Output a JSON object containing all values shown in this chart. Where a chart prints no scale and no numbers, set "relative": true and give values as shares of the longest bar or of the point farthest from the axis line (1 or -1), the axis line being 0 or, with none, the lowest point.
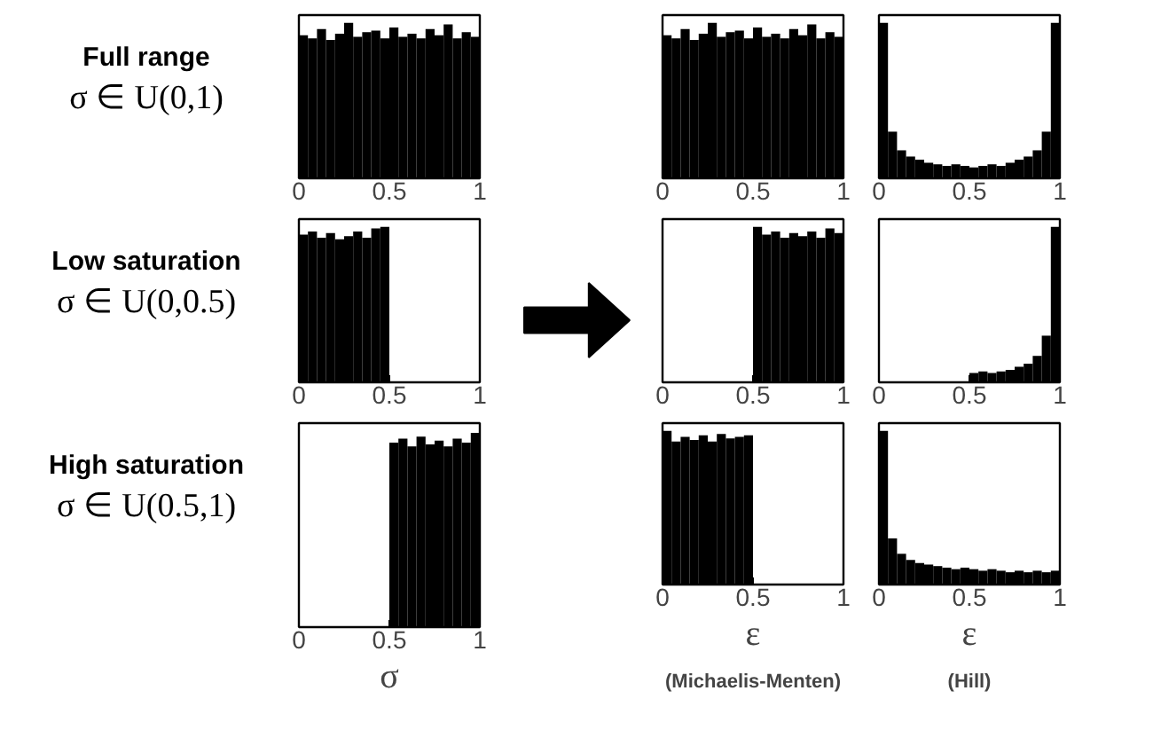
{
  "chart_data": [
    {
      "type": "bar",
      "relative": true,
      "color": "#000000",
      "xlim": [
        0,
        1
      ],
      "xticks": [
        0,
        0.5,
        1
      ],
      "grid": false,
      "annotations": [
        "Full range",
        "σ ∈ U(0,1)"
      ],
      "x": [
        0.025,
        0.075,
        0.125,
        0.175,
        0.225,
        0.275,
        0.325,
        0.375,
        0.425,
        0.475,
        0.525,
        0.575,
        0.625,
        0.675,
        0.725,
        0.775,
        0.825,
        0.875,
        0.925,
        0.975
      ],
      "values": [
        0.92,
        0.9,
        0.96,
        0.89,
        0.93,
        1.0,
        0.91,
        0.94,
        0.95,
        0.9,
        0.97,
        0.91,
        0.93,
        0.9,
        0.96,
        0.92,
        0.99,
        0.9,
        0.94,
        0.91
      ]
    },
    {
      "type": "bar",
      "relative": true,
      "color": "#000000",
      "xlim": [
        0,
        1
      ],
      "xticks": [
        0,
        0.5,
        1
      ],
      "grid": false,
      "x": [
        0.025,
        0.075,
        0.125,
        0.175,
        0.225,
        0.275,
        0.325,
        0.375,
        0.425,
        0.475,
        0.525,
        0.575,
        0.625,
        0.675,
        0.725,
        0.775,
        0.825,
        0.875,
        0.925,
        0.975
      ],
      "values": [
        0.92,
        0.9,
        0.96,
        0.89,
        0.93,
        1.0,
        0.91,
        0.94,
        0.95,
        0.9,
        0.97,
        0.91,
        0.93,
        0.9,
        0.96,
        0.92,
        0.99,
        0.9,
        0.94,
        0.91
      ]
    },
    {
      "type": "bar",
      "relative": true,
      "color": "#000000",
      "xlim": [
        0,
        1
      ],
      "xticks": [
        0,
        0.5,
        1
      ],
      "grid": false,
      "x": [
        0.025,
        0.075,
        0.125,
        0.175,
        0.225,
        0.275,
        0.325,
        0.375,
        0.425,
        0.475,
        0.525,
        0.575,
        0.625,
        0.675,
        0.725,
        0.775,
        0.825,
        0.875,
        0.925,
        0.975
      ],
      "values": [
        1.0,
        0.3,
        0.18,
        0.14,
        0.12,
        0.1,
        0.09,
        0.08,
        0.09,
        0.08,
        0.07,
        0.08,
        0.09,
        0.08,
        0.1,
        0.12,
        0.14,
        0.18,
        0.3,
        1.0
      ]
    },
    {
      "type": "bar",
      "relative": true,
      "color": "#000000",
      "xlim": [
        0,
        1
      ],
      "xticks": [
        0,
        0.5,
        1
      ],
      "grid": false,
      "annotations": [
        "Low saturation",
        "σ ∈ U(0,0.5)"
      ],
      "x": [
        0.025,
        0.075,
        0.125,
        0.175,
        0.225,
        0.275,
        0.325,
        0.375,
        0.425,
        0.475,
        0.525,
        0.575,
        0.625,
        0.675,
        0.725,
        0.775,
        0.825,
        0.875,
        0.925,
        0.975
      ],
      "values": [
        0.95,
        0.97,
        0.93,
        0.96,
        0.92,
        0.94,
        0.97,
        0.93,
        0.99,
        1.0,
        0,
        0,
        0,
        0,
        0,
        0,
        0,
        0,
        0,
        0
      ]
    },
    {
      "type": "bar",
      "relative": true,
      "color": "#000000",
      "xlim": [
        0,
        1
      ],
      "xticks": [
        0,
        0.5,
        1
      ],
      "grid": false,
      "x": [
        0.025,
        0.075,
        0.125,
        0.175,
        0.225,
        0.275,
        0.325,
        0.375,
        0.425,
        0.475,
        0.525,
        0.575,
        0.625,
        0.675,
        0.725,
        0.775,
        0.825,
        0.875,
        0.925,
        0.975
      ],
      "values": [
        0,
        0,
        0,
        0,
        0,
        0,
        0,
        0,
        0,
        0,
        1.0,
        0.95,
        0.97,
        0.93,
        0.96,
        0.94,
        0.97,
        0.93,
        0.99,
        0.96
      ]
    },
    {
      "type": "bar",
      "relative": true,
      "color": "#000000",
      "xlim": [
        0,
        1
      ],
      "xticks": [
        0,
        0.5,
        1
      ],
      "grid": false,
      "x": [
        0.025,
        0.075,
        0.125,
        0.175,
        0.225,
        0.275,
        0.325,
        0.375,
        0.425,
        0.475,
        0.525,
        0.575,
        0.625,
        0.675,
        0.725,
        0.775,
        0.825,
        0.875,
        0.925,
        0.975
      ],
      "values": [
        0,
        0,
        0,
        0,
        0,
        0,
        0,
        0,
        0,
        0,
        0.06,
        0.07,
        0.06,
        0.07,
        0.08,
        0.1,
        0.12,
        0.17,
        0.3,
        1.0
      ]
    },
    {
      "type": "bar",
      "relative": true,
      "color": "#000000",
      "xlim": [
        0,
        1
      ],
      "xticks": [
        0,
        0.5,
        1
      ],
      "grid": false,
      "annotations": [
        "High saturation",
        "σ ∈ U(0.5,1)"
      ],
      "xlabel": "σ",
      "x": [
        0.025,
        0.075,
        0.125,
        0.175,
        0.225,
        0.275,
        0.325,
        0.375,
        0.425,
        0.475,
        0.525,
        0.575,
        0.625,
        0.675,
        0.725,
        0.775,
        0.825,
        0.875,
        0.925,
        0.975
      ],
      "values": [
        0,
        0,
        0,
        0,
        0,
        0,
        0,
        0,
        0,
        0,
        0.95,
        0.97,
        0.93,
        0.98,
        0.94,
        0.96,
        0.93,
        0.97,
        0.95,
        1.0
      ]
    },
    {
      "type": "bar",
      "relative": true,
      "color": "#000000",
      "xlim": [
        0,
        1
      ],
      "xticks": [
        0,
        0.5,
        1
      ],
      "grid": false,
      "xlabel": "ε",
      "annotations": [
        "(Michaelis-Menten)"
      ],
      "x": [
        0.025,
        0.075,
        0.125,
        0.175,
        0.225,
        0.275,
        0.325,
        0.375,
        0.425,
        0.475,
        0.525,
        0.575,
        0.625,
        0.675,
        0.725,
        0.775,
        0.825,
        0.875,
        0.925,
        0.975
      ],
      "values": [
        1.0,
        0.93,
        0.96,
        0.94,
        0.97,
        0.93,
        0.98,
        0.95,
        0.96,
        0.97,
        0,
        0,
        0,
        0,
        0,
        0,
        0,
        0,
        0,
        0
      ]
    },
    {
      "type": "bar",
      "relative": true,
      "color": "#000000",
      "xlim": [
        0,
        1
      ],
      "xticks": [
        0,
        0.5,
        1
      ],
      "grid": false,
      "xlabel": "ε",
      "annotations": [
        "(Hill)"
      ],
      "x": [
        0.025,
        0.075,
        0.125,
        0.175,
        0.225,
        0.275,
        0.325,
        0.375,
        0.425,
        0.475,
        0.525,
        0.575,
        0.625,
        0.675,
        0.725,
        0.775,
        0.825,
        0.875,
        0.925,
        0.975
      ],
      "values": [
        1.0,
        0.3,
        0.2,
        0.16,
        0.14,
        0.13,
        0.12,
        0.11,
        0.1,
        0.11,
        0.1,
        0.09,
        0.1,
        0.09,
        0.08,
        0.09,
        0.08,
        0.09,
        0.08,
        0.09
      ]
    }
  ]
}
